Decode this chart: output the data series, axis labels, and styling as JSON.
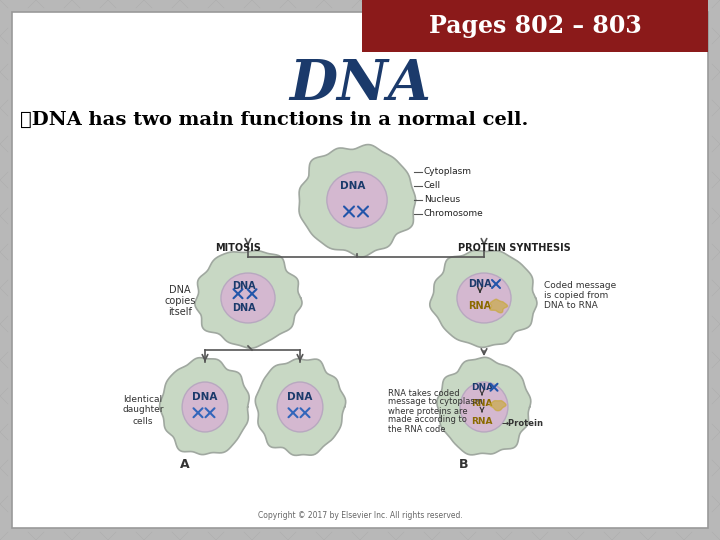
{
  "header_text": "Pages 802 – 803",
  "header_bg": "#8B1A1A",
  "header_text_color": "#FFFFFF",
  "title_text": "DNA",
  "title_color": "#1B3A6B",
  "bullet_text": "❖DNA has two main functions in a normal cell.",
  "bullet_color": "#000000",
  "slide_bg": "#B8B8B8",
  "content_bg": "#FFFFFF",
  "copyright": "Copyright © 2017 by Elsevier Inc. All rights reserved.",
  "cell_outer_color": "#C8D8C4",
  "cell_inner_color": "#D4B8D0",
  "cell_edge_color": "#A0A8A0",
  "nucleus_edge_color": "#B8A8C0",
  "dna_text_color": "#1B3A6B",
  "rna_text_color": "#8B6A00",
  "arrow_color": "#555555",
  "mitosis_label": "MITOSIS",
  "protein_label": "PROTEIN SYNTHESIS",
  "label_A": "A",
  "label_B": "B"
}
